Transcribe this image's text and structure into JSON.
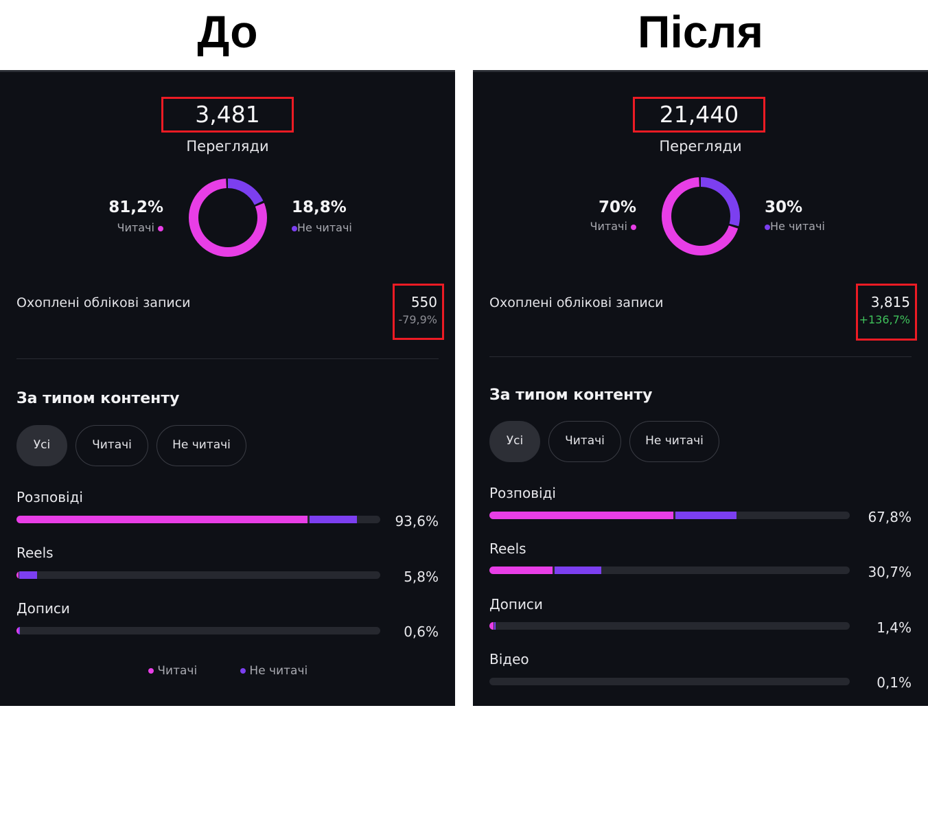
{
  "headings": {
    "before": "До",
    "after": "Після"
  },
  "colors": {
    "followers": "#e83ee6",
    "non_followers": "#7c3ff0",
    "highlight_box": "#ec1b24",
    "negative_change": "#8d8e95",
    "positive_change": "#3fc15b"
  },
  "before": {
    "views": {
      "value": "3,481",
      "label": "Перегляди"
    },
    "donut": {
      "followers_pct": "81,2%",
      "followers_label": "Читачі",
      "non_followers_pct": "18,8%",
      "non_followers_label": "Не читачі",
      "followers_fraction": 0.812
    },
    "accounts_reached": {
      "label": "Охоплені облікові записи",
      "value": "550",
      "change": "-79,9%"
    },
    "content_type": {
      "title": "За типом контенту",
      "filters": [
        "Усі",
        "Читачі",
        "Не читачі"
      ],
      "rows": [
        {
          "label": "Розповіді",
          "percent": "93,6%",
          "followers_share": 0.8,
          "non_followers_share": 0.13
        },
        {
          "label": "Reels",
          "percent": "5,8%",
          "followers_share": 0.005,
          "non_followers_share": 0.05
        },
        {
          "label": "Дописи",
          "percent": "0,6%",
          "followers_share": 0.004,
          "non_followers_share": 0.004
        }
      ]
    },
    "legend": {
      "followers": "Читачі",
      "non_followers": "Не читачі"
    }
  },
  "after": {
    "views": {
      "value": "21,440",
      "label": "Перегляди"
    },
    "donut": {
      "followers_pct": "70%",
      "followers_label": "Читачі",
      "non_followers_pct": "30%",
      "non_followers_label": "Не читачі",
      "followers_fraction": 0.7
    },
    "accounts_reached": {
      "label": "Охоплені облікові записи",
      "value": "3,815",
      "change": "+136,7%"
    },
    "content_type": {
      "title": "За типом контенту",
      "filters": [
        "Усі",
        "Читачі",
        "Не читачі"
      ],
      "rows": [
        {
          "label": "Розповіді",
          "percent": "67,8%",
          "followers_share": 0.51,
          "non_followers_share": 0.17
        },
        {
          "label": "Reels",
          "percent": "30,7%",
          "followers_share": 0.175,
          "non_followers_share": 0.13
        },
        {
          "label": "Дописи",
          "percent": "1,4%",
          "followers_share": 0.012,
          "non_followers_share": 0.004
        },
        {
          "label": "Відео",
          "percent": "0,1%",
          "followers_share": 0.0,
          "non_followers_share": 0.0
        }
      ]
    }
  }
}
